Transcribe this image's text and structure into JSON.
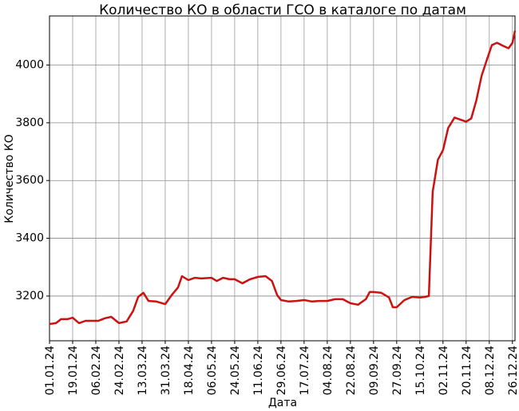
{
  "chart_data": {
    "type": "line",
    "title": "Количество КО в области ГСО в каталоге по датам",
    "x_label": "Дата",
    "y_label": "Количество КО",
    "x": [
      "01.01.24",
      "06.01.24",
      "10.01.24",
      "15.01.24",
      "19.01.24",
      "24.01.24",
      "29.01.24",
      "03.02.24",
      "08.02.24",
      "13.02.24",
      "18.02.24",
      "24.02.24",
      "01.03.24",
      "06.03.24",
      "10.03.24",
      "14.03.24",
      "18.03.24",
      "24.03.24",
      "31.03.24",
      "05.04.24",
      "10.04.24",
      "13.04.24",
      "18.04.24",
      "23.04.24",
      "28.04.24",
      "06.05.24",
      "10.05.24",
      "15.05.24",
      "20.05.24",
      "24.05.24",
      "30.05.24",
      "05.06.24",
      "11.06.24",
      "17.06.24",
      "22.06.24",
      "26.06.24",
      "29.06.24",
      "05.07.24",
      "11.07.24",
      "17.07.24",
      "23.07.24",
      "29.07.24",
      "04.08.24",
      "10.08.24",
      "16.08.24",
      "22.08.24",
      "28.08.24",
      "03.09.24",
      "06.09.24",
      "09.09.24",
      "15.09.24",
      "21.09.24",
      "24.09.24",
      "27.09.24",
      "03.10.24",
      "09.10.24",
      "15.10.24",
      "19.10.24",
      "22.10.24",
      "25.10.24",
      "29.10.24",
      "02.11.24",
      "06.11.24",
      "11.11.24",
      "16.11.24",
      "20.11.24",
      "24.11.24",
      "28.11.24",
      "02.12.24",
      "06.12.24",
      "10.12.24",
      "14.12.24",
      "19.12.24",
      "23.12.24",
      "26.12.24",
      "28.12.24"
    ],
    "series": [
      {
        "name": "Количество КО",
        "color": "#cc1111",
        "values": [
          3103,
          3106,
          3120,
          3120,
          3125,
          3106,
          3114,
          3114,
          3114,
          3123,
          3128,
          3106,
          3112,
          3148,
          3197,
          3211,
          3183,
          3181,
          3172,
          3203,
          3230,
          3269,
          3255,
          3263,
          3261,
          3263,
          3252,
          3263,
          3258,
          3258,
          3244,
          3258,
          3266,
          3269,
          3252,
          3203,
          3186,
          3181,
          3183,
          3186,
          3181,
          3183,
          3183,
          3189,
          3189,
          3175,
          3170,
          3189,
          3214,
          3214,
          3211,
          3195,
          3161,
          3161,
          3186,
          3197,
          3195,
          3197,
          3200,
          3561,
          3672,
          3705,
          3782,
          3818,
          3810,
          3804,
          3815,
          3879,
          3962,
          4017,
          4069,
          4077,
          4066,
          4058,
          4077,
          4119
        ]
      }
    ],
    "xlim": [
      "01.01.24",
      "28.12.24"
    ],
    "xticks": [
      "01.01.24",
      "19.01.24",
      "06.02.24",
      "24.02.24",
      "13.03.24",
      "31.03.24",
      "18.04.24",
      "06.05.24",
      "24.05.24",
      "11.06.24",
      "29.06.24",
      "17.07.24",
      "04.08.24",
      "22.08.24",
      "09.09.24",
      "27.09.24",
      "15.10.24",
      "02.11.24",
      "20.11.24",
      "08.12.24",
      "26.12.24"
    ],
    "ylim": [
      3045,
      4170
    ],
    "yticks": [
      3200,
      3400,
      3600,
      3800,
      4000
    ],
    "grid": true
  }
}
